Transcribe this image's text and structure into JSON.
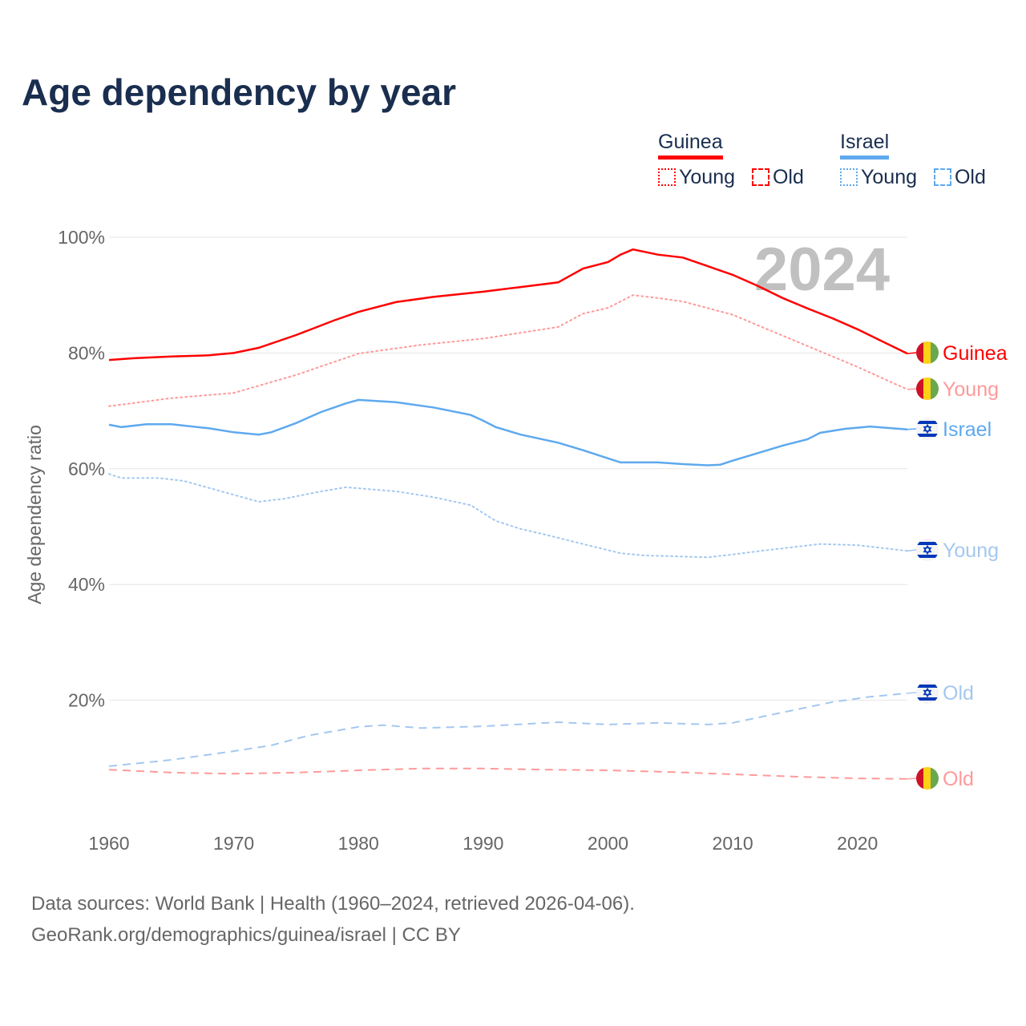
{
  "title": "Age dependency by year",
  "legend": {
    "groups": [
      {
        "name": "Guinea",
        "color": "#ff0000",
        "young_label": "Young",
        "old_label": "Old"
      },
      {
        "name": "Israel",
        "color": "#5ea9ee",
        "young_label": "Young",
        "old_label": "Old"
      }
    ]
  },
  "source": {
    "line1": "Data sources: World Bank | Health (1960–2024, retrieved 2026-04-06).",
    "line2": "GeoRank.org/demographics/guinea/israel | CC BY"
  },
  "chart_data": {
    "type": "line",
    "title": "Age dependency by year",
    "year_watermark": "2024",
    "ylabel": "Age dependency ratio",
    "xlabel": "",
    "xlim": [
      1960,
      2024
    ],
    "ylim": [
      0,
      100
    ],
    "x_ticks": [
      "1960",
      "1970",
      "1980",
      "1990",
      "2000",
      "2010",
      "2020"
    ],
    "y_ticks": [
      {
        "v": 20,
        "label": "20%"
      },
      {
        "v": 40,
        "label": "40%"
      },
      {
        "v": 60,
        "label": "60%"
      },
      {
        "v": 80,
        "label": "80%"
      },
      {
        "v": 100,
        "label": "100%"
      }
    ],
    "grid": true,
    "legend_position": "top-right",
    "series": [
      {
        "name": "Guinea",
        "end_label": "Guinea",
        "country": "guinea",
        "style": "solid",
        "color": "#ff0000",
        "points": [
          [
            1960,
            78.8
          ],
          [
            1962,
            79.1
          ],
          [
            1965,
            79.4
          ],
          [
            1968,
            79.6
          ],
          [
            1970,
            80.0
          ],
          [
            1972,
            80.9
          ],
          [
            1975,
            83.1
          ],
          [
            1978,
            85.6
          ],
          [
            1980,
            87.1
          ],
          [
            1983,
            88.8
          ],
          [
            1986,
            89.7
          ],
          [
            1990,
            90.6
          ],
          [
            1993,
            91.4
          ],
          [
            1996,
            92.2
          ],
          [
            1998,
            94.6
          ],
          [
            2000,
            95.7
          ],
          [
            2001,
            97.0
          ],
          [
            2002,
            97.9
          ],
          [
            2004,
            97.0
          ],
          [
            2006,
            96.5
          ],
          [
            2008,
            95.0
          ],
          [
            2010,
            93.5
          ],
          [
            2012,
            91.6
          ],
          [
            2014,
            89.5
          ],
          [
            2016,
            87.7
          ],
          [
            2018,
            86.0
          ],
          [
            2020,
            84.1
          ],
          [
            2022,
            82.0
          ],
          [
            2024,
            79.9
          ]
        ]
      },
      {
        "name": "Guinea Young",
        "end_label": "Young",
        "country": "guinea",
        "style": "dotted",
        "color": "#ff9a9a",
        "points": [
          [
            1960,
            70.8
          ],
          [
            1965,
            72.2
          ],
          [
            1970,
            73.1
          ],
          [
            1975,
            76.2
          ],
          [
            1980,
            79.9
          ],
          [
            1985,
            81.4
          ],
          [
            1990,
            82.5
          ],
          [
            1996,
            84.5
          ],
          [
            1998,
            86.8
          ],
          [
            2000,
            87.8
          ],
          [
            2002,
            90.0
          ],
          [
            2004,
            89.5
          ],
          [
            2006,
            88.9
          ],
          [
            2010,
            86.6
          ],
          [
            2015,
            82.1
          ],
          [
            2020,
            77.6
          ],
          [
            2024,
            73.7
          ]
        ]
      },
      {
        "name": "Guinea Old",
        "end_label": "Old",
        "country": "guinea",
        "style": "dashed",
        "color": "#ff9a9a",
        "points": [
          [
            1960,
            8.0
          ],
          [
            1965,
            7.5
          ],
          [
            1970,
            7.3
          ],
          [
            1975,
            7.5
          ],
          [
            1980,
            7.9
          ],
          [
            1985,
            8.2
          ],
          [
            1990,
            8.2
          ],
          [
            1995,
            8.0
          ],
          [
            2000,
            7.9
          ],
          [
            2005,
            7.6
          ],
          [
            2010,
            7.2
          ],
          [
            2015,
            6.8
          ],
          [
            2020,
            6.5
          ],
          [
            2024,
            6.4
          ]
        ]
      },
      {
        "name": "Israel",
        "end_label": "Israel",
        "country": "israel",
        "style": "solid",
        "color": "#5ea9ee",
        "points": [
          [
            1960,
            67.6
          ],
          [
            1961,
            67.2
          ],
          [
            1963,
            67.7
          ],
          [
            1965,
            67.7
          ],
          [
            1968,
            67.0
          ],
          [
            1970,
            66.3
          ],
          [
            1972,
            65.9
          ],
          [
            1973,
            66.3
          ],
          [
            1975,
            67.9
          ],
          [
            1977,
            69.8
          ],
          [
            1979,
            71.3
          ],
          [
            1980,
            71.9
          ],
          [
            1983,
            71.5
          ],
          [
            1986,
            70.6
          ],
          [
            1989,
            69.3
          ],
          [
            1990,
            68.3
          ],
          [
            1991,
            67.2
          ],
          [
            1993,
            65.9
          ],
          [
            1996,
            64.5
          ],
          [
            1998,
            63.2
          ],
          [
            2000,
            61.8
          ],
          [
            2001,
            61.1
          ],
          [
            2004,
            61.1
          ],
          [
            2006,
            60.8
          ],
          [
            2008,
            60.6
          ],
          [
            2009,
            60.7
          ],
          [
            2010,
            61.4
          ],
          [
            2012,
            62.7
          ],
          [
            2014,
            64.0
          ],
          [
            2016,
            65.1
          ],
          [
            2017,
            66.2
          ],
          [
            2019,
            66.9
          ],
          [
            2021,
            67.3
          ],
          [
            2024,
            66.8
          ]
        ]
      },
      {
        "name": "Israel Young",
        "end_label": "Young",
        "country": "israel",
        "style": "dotted",
        "color": "#a4c8f0",
        "points": [
          [
            1960,
            59.1
          ],
          [
            1961,
            58.4
          ],
          [
            1964,
            58.4
          ],
          [
            1966,
            57.9
          ],
          [
            1970,
            55.5
          ],
          [
            1972,
            54.3
          ],
          [
            1974,
            54.8
          ],
          [
            1977,
            56.1
          ],
          [
            1979,
            56.8
          ],
          [
            1983,
            56.1
          ],
          [
            1986,
            55.1
          ],
          [
            1989,
            53.7
          ],
          [
            1991,
            51.0
          ],
          [
            1993,
            49.6
          ],
          [
            1995,
            48.6
          ],
          [
            1998,
            47.0
          ],
          [
            2001,
            45.4
          ],
          [
            2003,
            45.0
          ],
          [
            2005,
            44.9
          ],
          [
            2008,
            44.7
          ],
          [
            2010,
            45.2
          ],
          [
            2013,
            46.0
          ],
          [
            2017,
            47.0
          ],
          [
            2020,
            46.8
          ],
          [
            2024,
            45.8
          ]
        ]
      },
      {
        "name": "Israel Old",
        "end_label": "Old",
        "country": "israel",
        "style": "dashed",
        "color": "#a4c8f0",
        "points": [
          [
            1960,
            8.6
          ],
          [
            1965,
            9.7
          ],
          [
            1970,
            11.2
          ],
          [
            1973,
            12.2
          ],
          [
            1976,
            13.9
          ],
          [
            1980,
            15.4
          ],
          [
            1982,
            15.7
          ],
          [
            1985,
            15.2
          ],
          [
            1990,
            15.5
          ],
          [
            1996,
            16.2
          ],
          [
            2000,
            15.8
          ],
          [
            2004,
            16.1
          ],
          [
            2008,
            15.8
          ],
          [
            2010,
            16.1
          ],
          [
            2014,
            17.9
          ],
          [
            2018,
            19.7
          ],
          [
            2021,
            20.6
          ],
          [
            2024,
            21.2
          ]
        ]
      }
    ]
  }
}
